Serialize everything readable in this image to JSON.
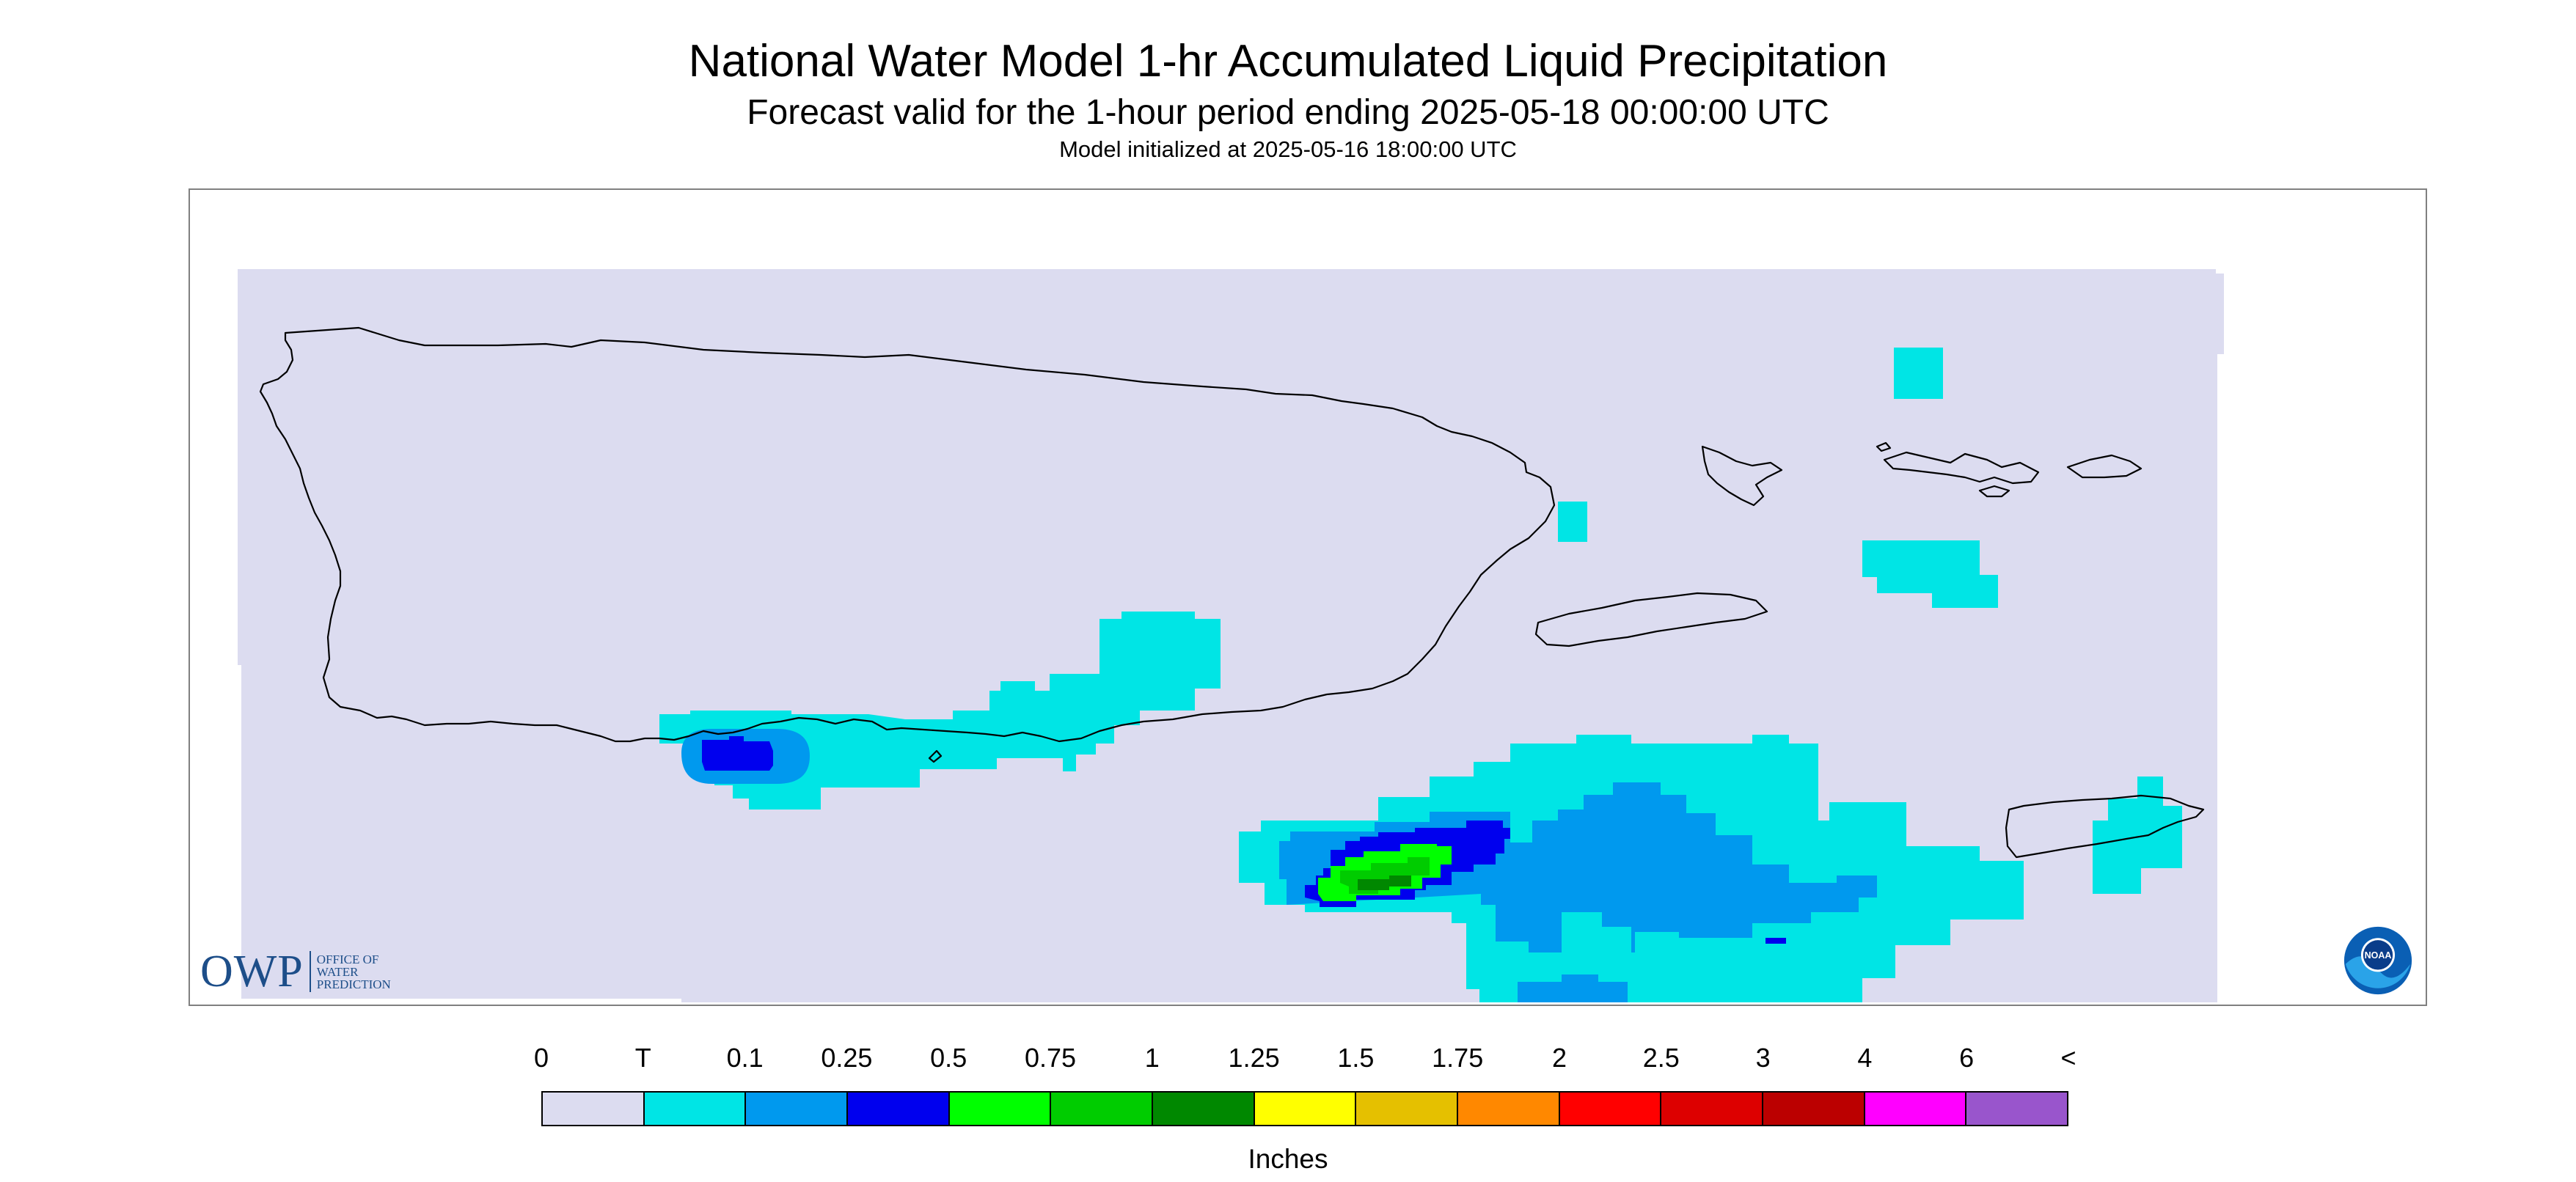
{
  "title": "National Water Model 1-hr Accumulated Liquid Precipitation",
  "subtitle": "Forecast valid for the 1-hour period ending 2025-05-18 00:00:00 UTC",
  "init_line": "Model initialized at 2025-05-16 18:00:00 UTC",
  "legend": {
    "labels": [
      "0",
      "T",
      "0.1",
      "0.25",
      "0.5",
      "0.75",
      "1",
      "1.25",
      "1.5",
      "1.75",
      "2",
      "2.5",
      "3",
      "4",
      "6",
      "<"
    ],
    "colors": [
      "#dcdcf0",
      "#00e5e5",
      "#0099ee",
      "#0000ee",
      "#00ff00",
      "#00cc00",
      "#008800",
      "#ffff00",
      "#e5c000",
      "#ff8800",
      "#ff0000",
      "#dd0000",
      "#bb0000",
      "#ff00ff",
      "#9955cc"
    ],
    "units": "Inches"
  },
  "logos": {
    "owp_letters": "OWP",
    "owp_lines": [
      "OFFICE OF",
      "WATER",
      "PREDICTION"
    ],
    "noaa": "NOAA"
  },
  "map_colors": {
    "background": "#dcdcf0",
    "trace": "#00e5e5",
    "light_blue": "#0099ee",
    "blue": "#0000ee",
    "green": "#00ff00",
    "mid_green": "#00cc00",
    "dark_green": "#008800",
    "coast": "#000000"
  }
}
